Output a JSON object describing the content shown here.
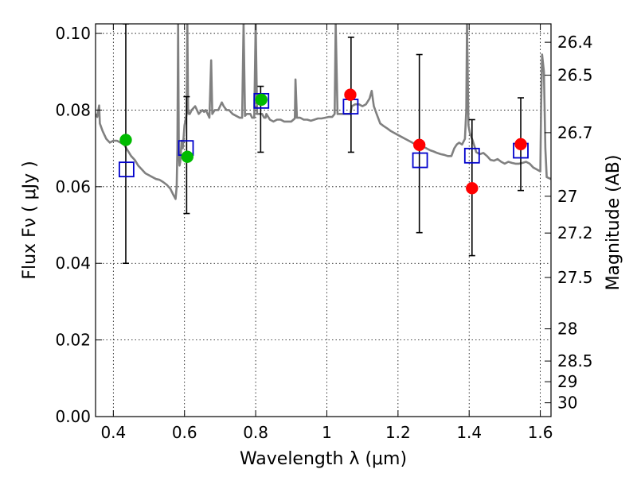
{
  "chart_data": {
    "type": "scatter",
    "xlabel": "Wavelength  λ (μm)",
    "ylabel": "Flux  Fν  ( μJy )",
    "y2label": "Magnitude (AB)",
    "xlim": [
      0.35,
      1.63
    ],
    "ylim": [
      0.0,
      0.1025
    ],
    "grid": true,
    "x_ticks": [
      {
        "v": 0.4,
        "label": "0.4"
      },
      {
        "v": 0.6,
        "label": "0.6"
      },
      {
        "v": 0.8,
        "label": "0.8"
      },
      {
        "v": 1.0,
        "label": "1"
      },
      {
        "v": 1.2,
        "label": "1.2"
      },
      {
        "v": 1.4,
        "label": "1.4"
      },
      {
        "v": 1.6,
        "label": "1.6"
      }
    ],
    "y_ticks": [
      {
        "v": 0.0,
        "label": "0.00"
      },
      {
        "v": 0.02,
        "label": "0.02"
      },
      {
        "v": 0.04,
        "label": "0.04"
      },
      {
        "v": 0.06,
        "label": "0.06"
      },
      {
        "v": 0.08,
        "label": "0.08"
      },
      {
        "v": 0.1,
        "label": "0.10"
      }
    ],
    "y2_ticks": [
      {
        "flux": 0.0977,
        "label": "26.4"
      },
      {
        "flux": 0.0891,
        "label": "26.5"
      },
      {
        "flux": 0.0741,
        "label": "26.7"
      },
      {
        "flux": 0.0575,
        "label": "27"
      },
      {
        "flux": 0.0479,
        "label": "27.2"
      },
      {
        "flux": 0.0363,
        "label": "27.5"
      },
      {
        "flux": 0.0229,
        "label": "28"
      },
      {
        "flux": 0.0145,
        "label": "28.5"
      },
      {
        "flux": 0.0091,
        "label": "29"
      },
      {
        "flux": 0.0036,
        "label": "30"
      }
    ],
    "colors": {
      "observed_green": "#00bb00",
      "observed_red": "#ff0000",
      "model_box": "#0000cc",
      "spectrum": "#808080",
      "errorbar": "#000000"
    },
    "errorbars": [
      {
        "x": 0.435,
        "low": 0.04,
        "high": 0.1025
      },
      {
        "x": 0.606,
        "low": 0.053,
        "high": 0.0835
      },
      {
        "x": 0.814,
        "low": 0.069,
        "high": 0.0862
      },
      {
        "x": 1.068,
        "low": 0.069,
        "high": 0.099
      },
      {
        "x": 1.26,
        "low": 0.048,
        "high": 0.0945
      },
      {
        "x": 1.408,
        "low": 0.042,
        "high": 0.0775
      },
      {
        "x": 1.545,
        "low": 0.059,
        "high": 0.0832
      }
    ],
    "model_points": [
      {
        "x": 0.437,
        "y": 0.0645
      },
      {
        "x": 0.604,
        "y": 0.0701
      },
      {
        "x": 0.816,
        "y": 0.0824
      },
      {
        "x": 1.067,
        "y": 0.0809
      },
      {
        "x": 1.262,
        "y": 0.0669
      },
      {
        "x": 1.408,
        "y": 0.0681
      },
      {
        "x": 1.545,
        "y": 0.0694
      }
    ],
    "observed_points": [
      {
        "x": 0.435,
        "y": 0.0722,
        "band": "green"
      },
      {
        "x": 0.608,
        "y": 0.0678,
        "band": "green"
      },
      {
        "x": 0.816,
        "y": 0.0827,
        "band": "green"
      },
      {
        "x": 1.066,
        "y": 0.084,
        "band": "red"
      },
      {
        "x": 1.26,
        "y": 0.0709,
        "band": "red"
      },
      {
        "x": 1.408,
        "y": 0.0596,
        "band": "red"
      },
      {
        "x": 1.545,
        "y": 0.0711,
        "band": "red"
      }
    ],
    "spectrum": [
      [
        0.35,
        0.079
      ],
      [
        0.355,
        0.0782
      ],
      [
        0.36,
        0.0812
      ],
      [
        0.362,
        0.0765
      ],
      [
        0.37,
        0.0745
      ],
      [
        0.38,
        0.0725
      ],
      [
        0.39,
        0.0715
      ],
      [
        0.4,
        0.072
      ],
      [
        0.41,
        0.072
      ],
      [
        0.42,
        0.0715
      ],
      [
        0.43,
        0.071
      ],
      [
        0.44,
        0.0695
      ],
      [
        0.45,
        0.068
      ],
      [
        0.46,
        0.067
      ],
      [
        0.47,
        0.0655
      ],
      [
        0.48,
        0.0645
      ],
      [
        0.49,
        0.0635
      ],
      [
        0.5,
        0.063
      ],
      [
        0.51,
        0.0625
      ],
      [
        0.52,
        0.062
      ],
      [
        0.53,
        0.0618
      ],
      [
        0.54,
        0.0612
      ],
      [
        0.55,
        0.0605
      ],
      [
        0.56,
        0.0595
      ],
      [
        0.568,
        0.058
      ],
      [
        0.575,
        0.0568
      ],
      [
        0.578,
        0.06
      ],
      [
        0.58,
        0.07
      ],
      [
        0.582,
        0.1025
      ],
      [
        0.584,
        0.069
      ],
      [
        0.586,
        0.0655
      ],
      [
        0.588,
        0.0665
      ],
      [
        0.592,
        0.072
      ],
      [
        0.595,
        0.07
      ],
      [
        0.598,
        0.0735
      ],
      [
        0.6,
        0.076
      ],
      [
        0.603,
        0.0775
      ],
      [
        0.606,
        0.079
      ],
      [
        0.608,
        0.1025
      ],
      [
        0.61,
        0.08
      ],
      [
        0.612,
        0.079
      ],
      [
        0.615,
        0.079
      ],
      [
        0.62,
        0.08
      ],
      [
        0.63,
        0.081
      ],
      [
        0.64,
        0.079
      ],
      [
        0.65,
        0.08
      ],
      [
        0.655,
        0.0795
      ],
      [
        0.66,
        0.08
      ],
      [
        0.67,
        0.078
      ],
      [
        0.675,
        0.093
      ],
      [
        0.678,
        0.079
      ],
      [
        0.685,
        0.08
      ],
      [
        0.695,
        0.08
      ],
      [
        0.7,
        0.081
      ],
      [
        0.705,
        0.082
      ],
      [
        0.71,
        0.081
      ],
      [
        0.718,
        0.08
      ],
      [
        0.725,
        0.08
      ],
      [
        0.735,
        0.079
      ],
      [
        0.745,
        0.0785
      ],
      [
        0.755,
        0.078
      ],
      [
        0.762,
        0.078
      ],
      [
        0.766,
        0.1025
      ],
      [
        0.77,
        0.0785
      ],
      [
        0.775,
        0.079
      ],
      [
        0.785,
        0.079
      ],
      [
        0.79,
        0.078
      ],
      [
        0.796,
        0.078
      ],
      [
        0.8,
        0.1025
      ],
      [
        0.804,
        0.079
      ],
      [
        0.812,
        0.079
      ],
      [
        0.818,
        0.079
      ],
      [
        0.824,
        0.078
      ],
      [
        0.828,
        0.078
      ],
      [
        0.83,
        0.079
      ],
      [
        0.84,
        0.0775
      ],
      [
        0.85,
        0.077
      ],
      [
        0.86,
        0.0775
      ],
      [
        0.87,
        0.0775
      ],
      [
        0.88,
        0.077
      ],
      [
        0.89,
        0.077
      ],
      [
        0.9,
        0.077
      ],
      [
        0.91,
        0.0778
      ],
      [
        0.912,
        0.088
      ],
      [
        0.916,
        0.078
      ],
      [
        0.925,
        0.078
      ],
      [
        0.935,
        0.0775
      ],
      [
        0.945,
        0.0775
      ],
      [
        0.955,
        0.0772
      ],
      [
        0.965,
        0.0775
      ],
      [
        0.975,
        0.0778
      ],
      [
        0.985,
        0.0778
      ],
      [
        0.995,
        0.078
      ],
      [
        1.005,
        0.0782
      ],
      [
        1.015,
        0.0782
      ],
      [
        1.022,
        0.079
      ],
      [
        1.025,
        0.1025
      ],
      [
        1.03,
        0.079
      ],
      [
        1.04,
        0.079
      ],
      [
        1.05,
        0.079
      ],
      [
        1.06,
        0.079
      ],
      [
        1.066,
        0.079
      ],
      [
        1.07,
        0.081
      ],
      [
        1.08,
        0.0815
      ],
      [
        1.09,
        0.0815
      ],
      [
        1.1,
        0.081
      ],
      [
        1.11,
        0.0815
      ],
      [
        1.12,
        0.083
      ],
      [
        1.126,
        0.085
      ],
      [
        1.132,
        0.081
      ],
      [
        1.14,
        0.079
      ],
      [
        1.15,
        0.0765
      ],
      [
        1.16,
        0.0758
      ],
      [
        1.17,
        0.0752
      ],
      [
        1.18,
        0.0745
      ],
      [
        1.19,
        0.074
      ],
      [
        1.2,
        0.0735
      ],
      [
        1.21,
        0.073
      ],
      [
        1.22,
        0.0725
      ],
      [
        1.23,
        0.072
      ],
      [
        1.24,
        0.0715
      ],
      [
        1.25,
        0.071
      ],
      [
        1.26,
        0.0705
      ],
      [
        1.27,
        0.0705
      ],
      [
        1.28,
        0.07
      ],
      [
        1.29,
        0.0695
      ],
      [
        1.3,
        0.0692
      ],
      [
        1.31,
        0.0688
      ],
      [
        1.32,
        0.0685
      ],
      [
        1.33,
        0.0683
      ],
      [
        1.34,
        0.068
      ],
      [
        1.35,
        0.068
      ],
      [
        1.358,
        0.07
      ],
      [
        1.365,
        0.071
      ],
      [
        1.372,
        0.0715
      ],
      [
        1.38,
        0.071
      ],
      [
        1.388,
        0.0725
      ],
      [
        1.392,
        0.08
      ],
      [
        1.394,
        0.1025
      ],
      [
        1.398,
        0.076
      ],
      [
        1.402,
        0.074
      ],
      [
        1.41,
        0.072
      ],
      [
        1.42,
        0.069
      ],
      [
        1.43,
        0.0685
      ],
      [
        1.44,
        0.0688
      ],
      [
        1.45,
        0.068
      ],
      [
        1.46,
        0.067
      ],
      [
        1.47,
        0.0668
      ],
      [
        1.48,
        0.0672
      ],
      [
        1.49,
        0.0665
      ],
      [
        1.5,
        0.066
      ],
      [
        1.51,
        0.0665
      ],
      [
        1.52,
        0.0662
      ],
      [
        1.53,
        0.066
      ],
      [
        1.54,
        0.066
      ],
      [
        1.55,
        0.0662
      ],
      [
        1.56,
        0.0665
      ],
      [
        1.57,
        0.066
      ],
      [
        1.58,
        0.065
      ],
      [
        1.59,
        0.0645
      ],
      [
        1.6,
        0.064
      ],
      [
        1.602,
        0.08
      ],
      [
        1.605,
        0.0945
      ],
      [
        1.61,
        0.09
      ],
      [
        1.614,
        0.07
      ],
      [
        1.618,
        0.0625
      ],
      [
        1.63,
        0.062
      ]
    ]
  }
}
